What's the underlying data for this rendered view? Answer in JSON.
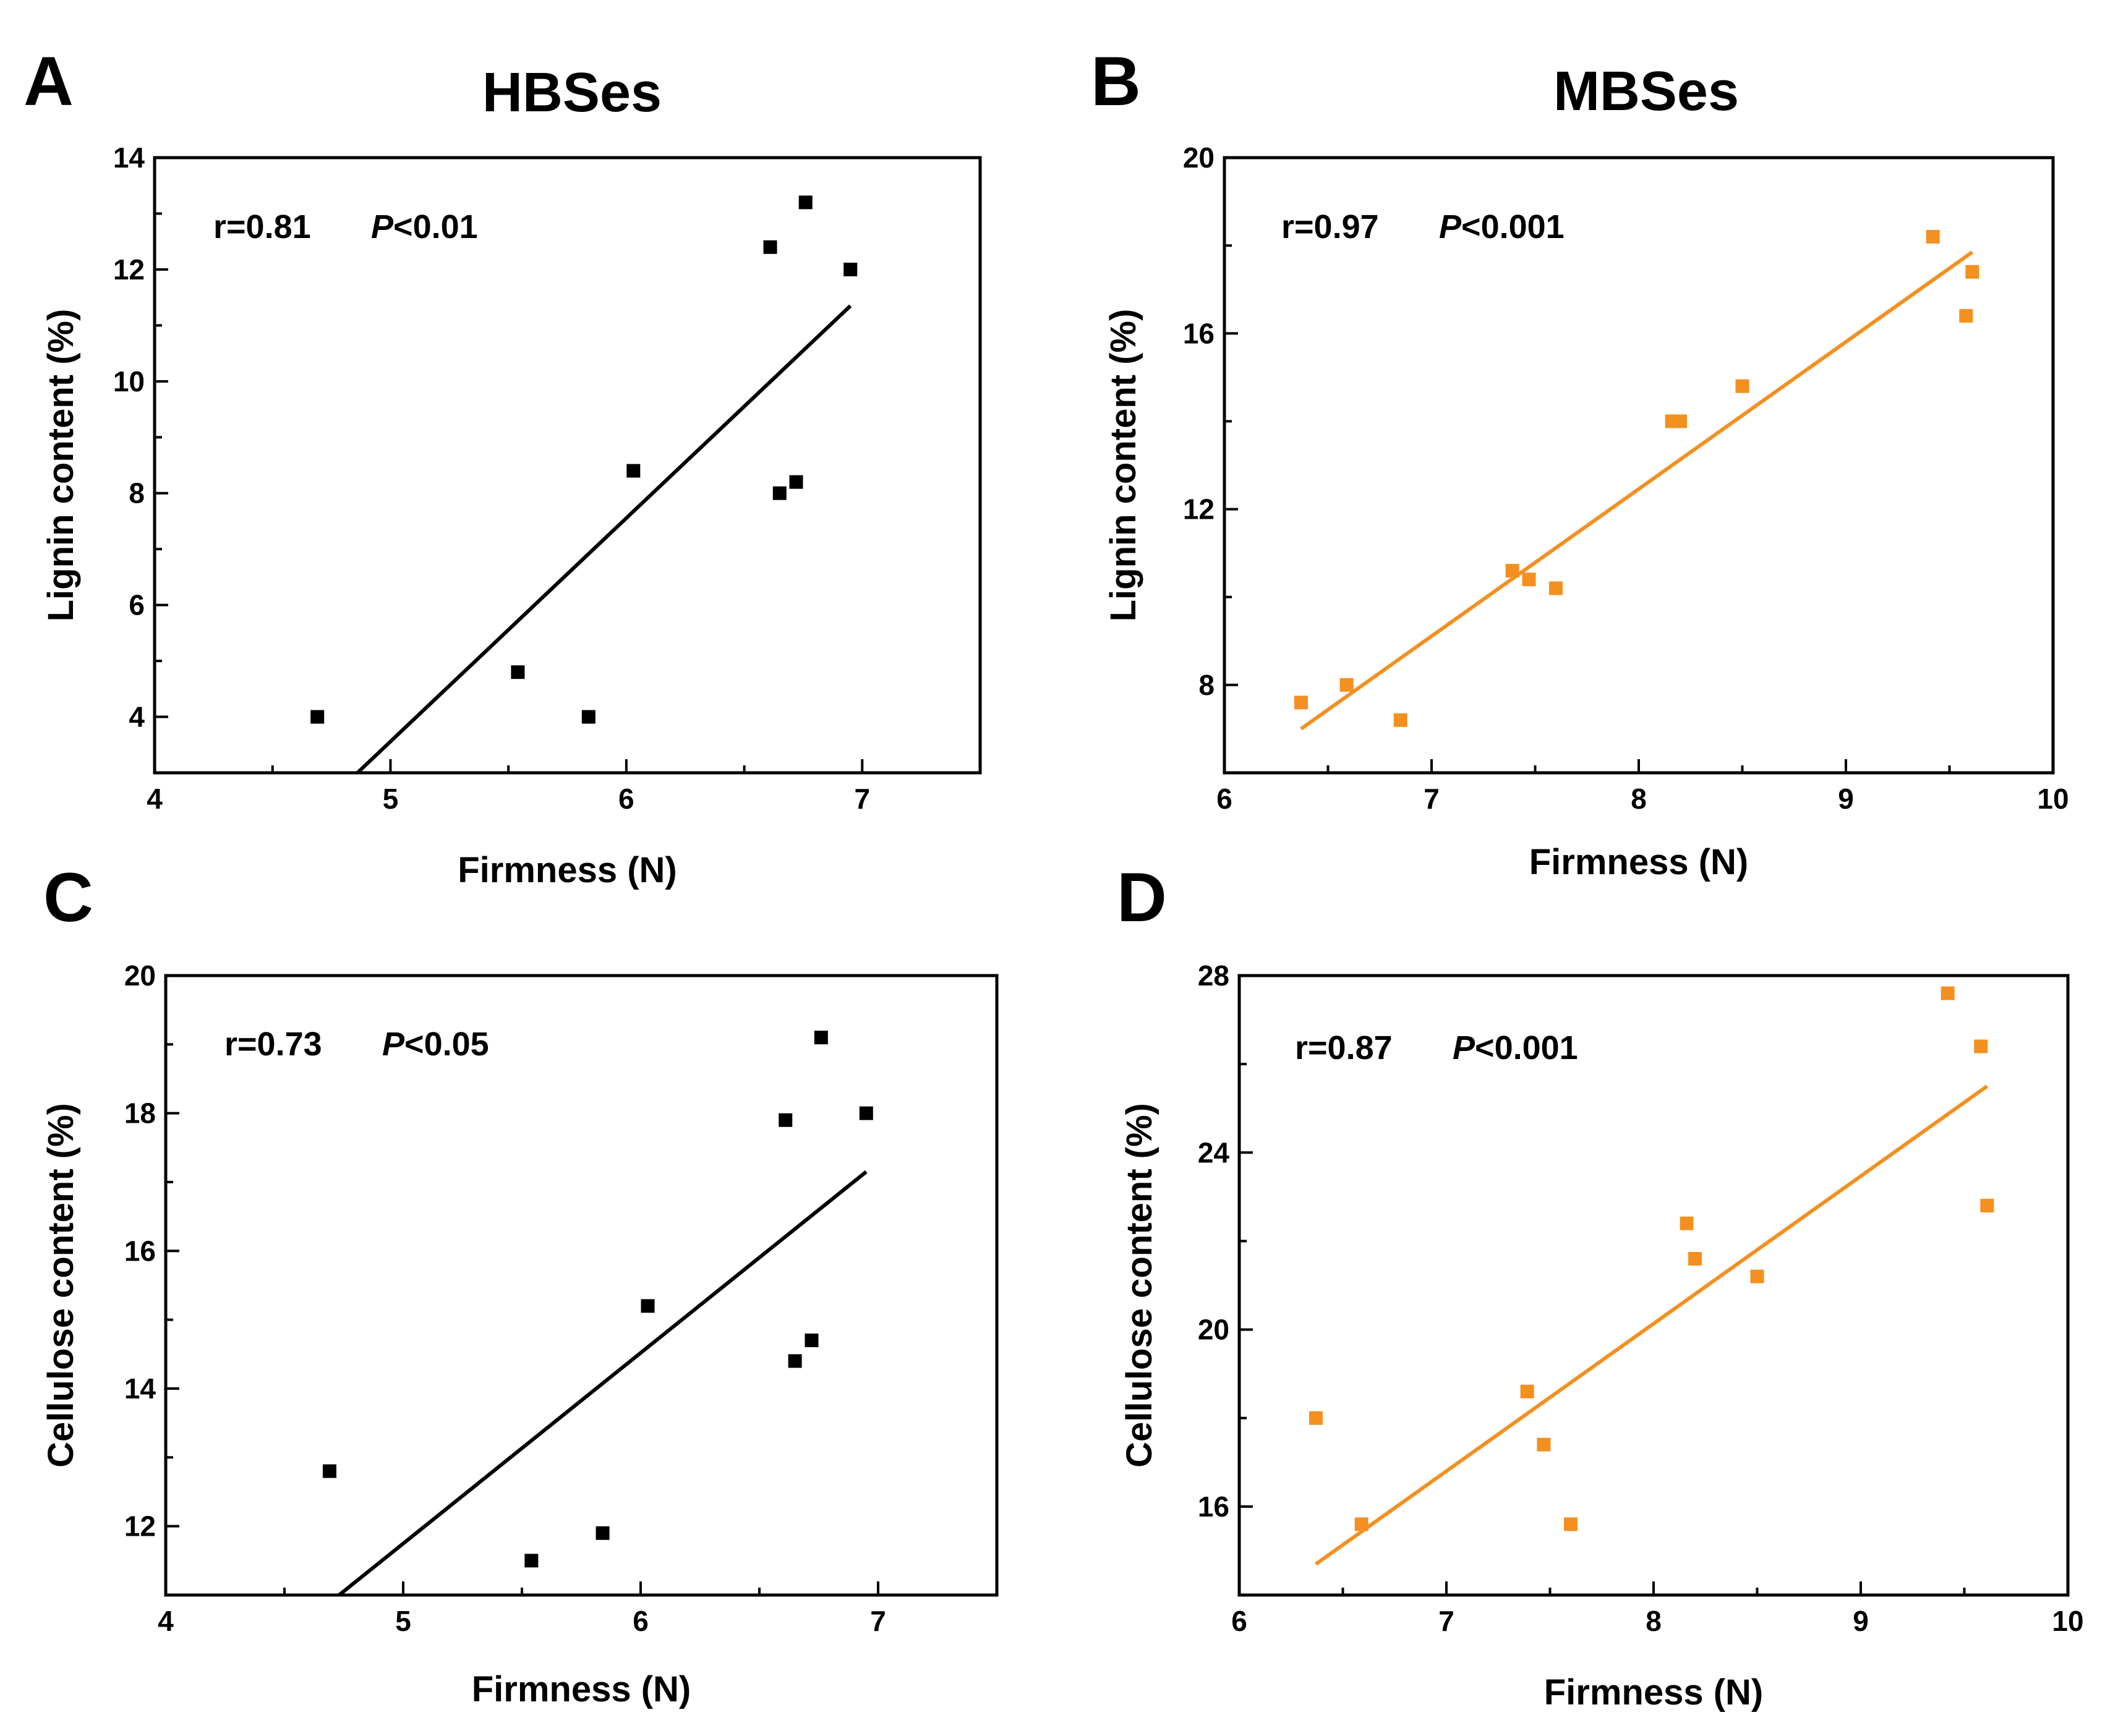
{
  "chart_data": [
    {
      "id": "A",
      "type": "scatter",
      "panel_letter": "A",
      "title": "HBSes",
      "xlabel": "Firmness (N)",
      "ylabel": "Lignin content (%)",
      "xlim": [
        4,
        7.5
      ],
      "ylim": [
        3,
        14
      ],
      "xticks": [
        4,
        5,
        6,
        7
      ],
      "yticks": [
        4,
        6,
        8,
        10,
        12,
        14
      ],
      "minor_xticks": [
        4.5,
        5.5,
        6.5,
        7.5
      ],
      "minor_yticks": [
        3,
        5,
        7,
        9,
        11,
        13
      ],
      "stat_r": "r=0.81",
      "stat_p_symbol": "P",
      "stat_p_value": "<0.01",
      "color": "#000000",
      "points": [
        {
          "x": 4.69,
          "y": 4.0
        },
        {
          "x": 5.54,
          "y": 4.8
        },
        {
          "x": 5.84,
          "y": 4.0
        },
        {
          "x": 6.03,
          "y": 8.4
        },
        {
          "x": 6.61,
          "y": 12.4
        },
        {
          "x": 6.65,
          "y": 8.0
        },
        {
          "x": 6.72,
          "y": 8.2
        },
        {
          "x": 6.76,
          "y": 13.2
        },
        {
          "x": 6.95,
          "y": 12.0
        }
      ],
      "fit": {
        "x": [
          4.86,
          6.95
        ],
        "y": [
          3.0,
          11.35
        ]
      }
    },
    {
      "id": "B",
      "type": "scatter",
      "panel_letter": "B",
      "title": "MBSes",
      "xlabel": "Firmness (N)",
      "ylabel": "Lignin content (%)",
      "xlim": [
        6,
        10
      ],
      "ylim": [
        6,
        20
      ],
      "xticks": [
        6,
        7,
        8,
        9,
        10
      ],
      "yticks": [
        8,
        12,
        16,
        20
      ],
      "minor_xticks": [
        6.5,
        7.5,
        8.5,
        9.5
      ],
      "minor_yticks": [
        6,
        10,
        14,
        18
      ],
      "stat_r": "r=0.97",
      "stat_p_symbol": "P",
      "stat_p_value": "<0.001",
      "color": "#f39020",
      "points": [
        {
          "x": 6.37,
          "y": 7.6
        },
        {
          "x": 6.59,
          "y": 8.0
        },
        {
          "x": 6.85,
          "y": 7.2
        },
        {
          "x": 7.39,
          "y": 10.6
        },
        {
          "x": 7.47,
          "y": 10.4
        },
        {
          "x": 7.6,
          "y": 10.2
        },
        {
          "x": 8.16,
          "y": 14.0
        },
        {
          "x": 8.2,
          "y": 14.0
        },
        {
          "x": 8.5,
          "y": 14.8
        },
        {
          "x": 9.42,
          "y": 18.2
        },
        {
          "x": 9.58,
          "y": 16.4
        },
        {
          "x": 9.61,
          "y": 17.4
        }
      ],
      "fit": {
        "x": [
          6.37,
          9.61
        ],
        "y": [
          7.0,
          17.85
        ]
      }
    },
    {
      "id": "C",
      "type": "scatter",
      "panel_letter": "C",
      "title": "",
      "xlabel": "Firmness (N)",
      "ylabel": "Cellulose content (%)",
      "xlim": [
        4,
        7.5
      ],
      "ylim": [
        11,
        20
      ],
      "xticks": [
        4,
        5,
        6,
        7
      ],
      "yticks": [
        12,
        14,
        16,
        18,
        20
      ],
      "minor_xticks": [
        4.5,
        5.5,
        6.5,
        7.5
      ],
      "minor_yticks": [
        11,
        13,
        15,
        17,
        19
      ],
      "stat_r": "r=0.73",
      "stat_p_symbol": "P",
      "stat_p_value": "<0.05",
      "color": "#000000",
      "points": [
        {
          "x": 4.69,
          "y": 12.8
        },
        {
          "x": 5.54,
          "y": 11.5
        },
        {
          "x": 5.84,
          "y": 11.9
        },
        {
          "x": 6.03,
          "y": 15.2
        },
        {
          "x": 6.61,
          "y": 17.9
        },
        {
          "x": 6.65,
          "y": 14.4
        },
        {
          "x": 6.72,
          "y": 14.7
        },
        {
          "x": 6.76,
          "y": 19.1
        },
        {
          "x": 6.95,
          "y": 18.0
        }
      ],
      "fit": {
        "x": [
          4.73,
          6.95
        ],
        "y": [
          11.0,
          17.15
        ]
      }
    },
    {
      "id": "D",
      "type": "scatter",
      "panel_letter": "D",
      "title": "",
      "xlabel": "Firmness (N)",
      "ylabel": "Cellulose content (%)",
      "xlim": [
        6,
        10
      ],
      "ylim": [
        14,
        28
      ],
      "xticks": [
        6,
        7,
        8,
        9,
        10
      ],
      "yticks": [
        16,
        20,
        24,
        28
      ],
      "minor_xticks": [
        6.5,
        7.5,
        8.5,
        9.5
      ],
      "minor_yticks": [
        14,
        18,
        22,
        26
      ],
      "stat_r": "r=0.87",
      "stat_p_symbol": "P",
      "stat_p_value": "<0.001",
      "color": "#f39020",
      "points": [
        {
          "x": 6.37,
          "y": 18.0
        },
        {
          "x": 6.59,
          "y": 15.6
        },
        {
          "x": 7.39,
          "y": 18.6
        },
        {
          "x": 7.47,
          "y": 17.4
        },
        {
          "x": 7.6,
          "y": 15.6
        },
        {
          "x": 8.16,
          "y": 22.4
        },
        {
          "x": 8.2,
          "y": 21.6
        },
        {
          "x": 8.5,
          "y": 21.2
        },
        {
          "x": 9.42,
          "y": 27.6
        },
        {
          "x": 9.58,
          "y": 26.4
        },
        {
          "x": 9.61,
          "y": 22.8
        }
      ],
      "fit": {
        "x": [
          6.37,
          9.61
        ],
        "y": [
          14.7,
          25.5
        ]
      }
    }
  ]
}
